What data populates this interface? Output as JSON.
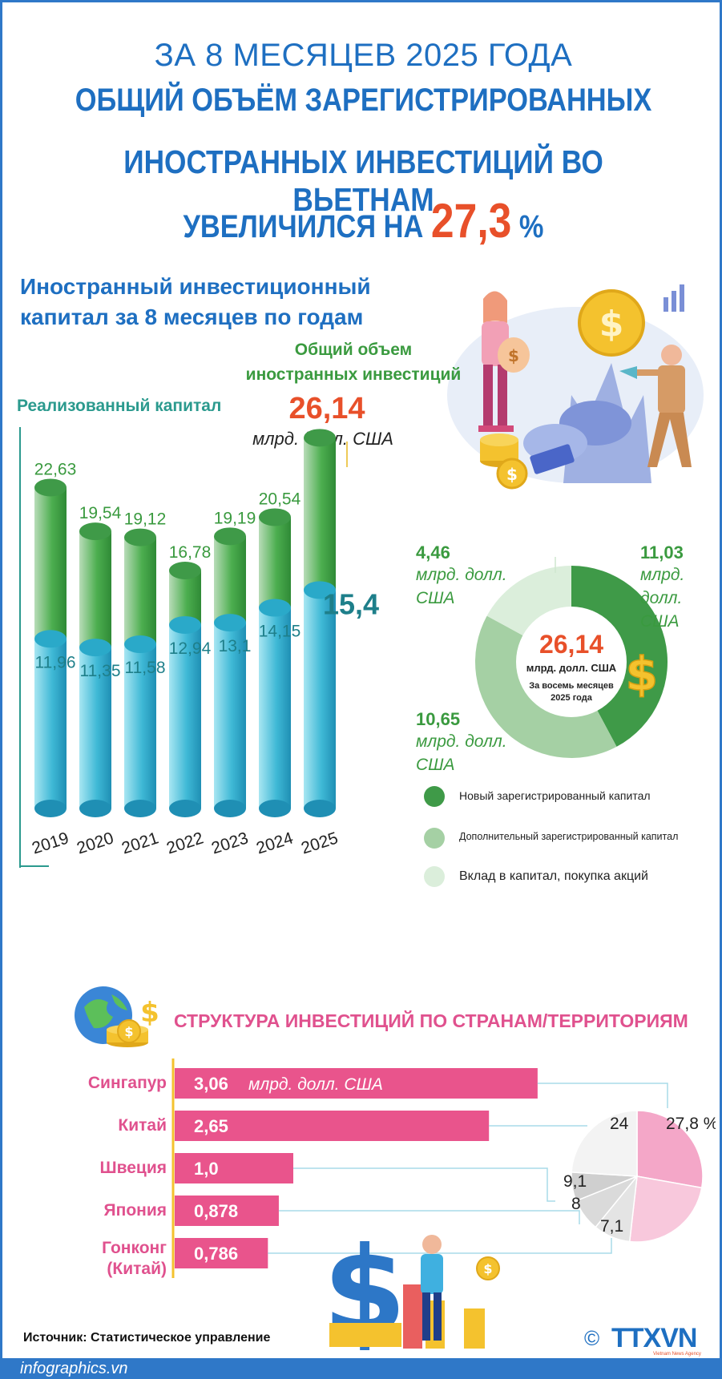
{
  "header": {
    "line1": "ЗА 8 МЕСЯЦЕВ 2025 ГОДА",
    "line2": "ОБЩИЙ ОБЪЁМ ЗАРЕГИСТРИРОВАННЫХ",
    "line3": "ИНОСТРАННЫХ ИНВЕСТИЦИЙ ВО ВЬЕТНАМ",
    "line4_prefix": "УВЕЛИЧИЛСЯ НА",
    "line4_value": "27,3",
    "line4_suffix": "%"
  },
  "section1": {
    "title_line1": "Иностранный инвестиционный",
    "title_line2": "капитал за 8 месяцев по годам",
    "total_label_line1": "Общий объем",
    "total_label_line2": "иностранных инвестиций",
    "realized_label": "Реализованный капитал",
    "total_value": "26,14",
    "total_unit": "млрд. долл. США"
  },
  "donut": {
    "center_value": "26,14",
    "center_unit": "млрд. долл. США",
    "center_note_line1": "За восемь месяцев",
    "center_note_line2": "2025 года",
    "labels": [
      {
        "value": "11,03",
        "unit_line1": "млрд.",
        "unit_line2": "долл.",
        "unit_line3": "США"
      },
      {
        "value": "10,65",
        "unit_line1": "млрд. долл.",
        "unit_line2": "США"
      },
      {
        "value": "4,46",
        "unit_line1": "млрд. долл.",
        "unit_line2": "США"
      }
    ],
    "legend": [
      "Новый зарегистрированный капитал",
      "Дополнительный зарегистрированный капитал",
      "Вклад в капитал, покупка акций"
    ]
  },
  "section2": {
    "title": "СТРУКТУРА ИНВЕСТИЦИЙ ПО СТРАНАМ/ТЕРРИТОРИЯМ",
    "unit": "млрд. долл. США"
  },
  "footer": {
    "source": "Источник: Статистическое управление",
    "site": "infographics.vn",
    "copyright": "©",
    "agency": "TTXVN",
    "agency_sub": "Vietnam News Agency"
  },
  "colors": {
    "blue": "#1e6fc1",
    "orange": "#e8502a",
    "green": "#3a9a3f",
    "teal": "#2b9a8e",
    "pink": "#e0518e",
    "donut_new": "#3f9a48",
    "donut_additional": "#a5d0a4",
    "donut_contribution": "#dbeedb"
  },
  "chart_data": [
    {
      "type": "bar",
      "categories": [
        "2019",
        "2020",
        "2021",
        "2022",
        "2023",
        "2024",
        "2025"
      ],
      "series": [
        {
          "name": "Общий объем иностранных инвестиций",
          "values": [
            22.63,
            19.54,
            19.12,
            16.78,
            19.19,
            20.54,
            26.14
          ],
          "labels": [
            "22,63",
            "19,54",
            "19,12",
            "16,78",
            "19,19",
            "20,54",
            "26,14"
          ]
        },
        {
          "name": "Реализованный капитал",
          "values": [
            11.96,
            11.35,
            11.58,
            12.94,
            13.1,
            14.15,
            15.4
          ],
          "labels": [
            "11,96",
            "11,35",
            "11,58",
            "12,94",
            "13,1",
            "14,15",
            "15,4"
          ]
        }
      ],
      "title": "Иностранный инвестиционный капитал за 8 месяцев по годам",
      "ylim": [
        0,
        28
      ]
    },
    {
      "type": "pie",
      "categories": [
        "Новый зарегистрированный капитал",
        "Дополнительный зарегистрированный капитал",
        "Вклад в капитал, покупка акций"
      ],
      "values": [
        11.03,
        10.65,
        4.46
      ],
      "total": 26.14
    },
    {
      "type": "bar",
      "title": "СТРУКТУРА ИНВЕСТИЦИЙ ПО СТРАНАМ/ТЕРРИТОРИЯМ",
      "categories": [
        "Сингапур",
        "Китай",
        "Швеция",
        "Япония",
        "Гонконг (Китай)"
      ],
      "category_lines": [
        [
          "Сингапур"
        ],
        [
          "Китай"
        ],
        [
          "Швеция"
        ],
        [
          "Япония"
        ],
        [
          "Гонконг",
          "(Китай)"
        ]
      ],
      "values": [
        3.06,
        2.65,
        1.0,
        0.878,
        0.786
      ],
      "labels": [
        "3,06",
        "2,65",
        "1,0",
        "0,878",
        "0,786"
      ],
      "orientation": "horizontal"
    },
    {
      "type": "pie",
      "values": [
        27.8,
        24,
        9.1,
        8,
        7.1
      ],
      "labels": [
        "27,8 %",
        "24",
        "9,1",
        "8",
        "7,1"
      ]
    }
  ]
}
